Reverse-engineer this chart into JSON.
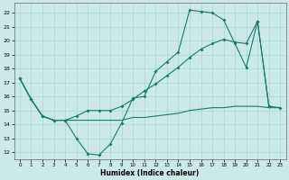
{
  "xlabel": "Humidex (Indice chaleur)",
  "xlim": [
    -0.5,
    23.5
  ],
  "ylim": [
    11.5,
    22.7
  ],
  "xticks": [
    0,
    1,
    2,
    3,
    4,
    5,
    6,
    7,
    8,
    9,
    10,
    11,
    12,
    13,
    14,
    15,
    16,
    17,
    18,
    19,
    20,
    21,
    22,
    23
  ],
  "yticks": [
    12,
    13,
    14,
    15,
    16,
    17,
    18,
    19,
    20,
    21,
    22
  ],
  "background_color": "#cce9e9",
  "grid_color": "#aad4d4",
  "line_color": "#1a7a6e",
  "line1_x": [
    0,
    1,
    2,
    3,
    4,
    5,
    6,
    7,
    8,
    9,
    10,
    11,
    12,
    13,
    14,
    15,
    16,
    17,
    18,
    19,
    20,
    21,
    22
  ],
  "line1_y": [
    17.3,
    15.8,
    14.6,
    14.3,
    14.3,
    13.0,
    11.9,
    11.8,
    12.6,
    14.1,
    15.9,
    16.0,
    17.8,
    18.5,
    19.2,
    22.2,
    22.1,
    22.0,
    21.5,
    19.8,
    18.1,
    21.4,
    15.3
  ],
  "line2_x": [
    0,
    1,
    2,
    3,
    4,
    5,
    6,
    7,
    8,
    9,
    10,
    11,
    12,
    13,
    14,
    15,
    16,
    17,
    18,
    19,
    20,
    21,
    22,
    23
  ],
  "line2_y": [
    17.3,
    15.8,
    14.6,
    14.3,
    14.3,
    14.3,
    14.3,
    14.3,
    14.3,
    14.3,
    14.5,
    14.5,
    14.6,
    14.7,
    14.8,
    15.0,
    15.1,
    15.2,
    15.2,
    15.3,
    15.3,
    15.3,
    15.2,
    15.2
  ],
  "line3_x": [
    0,
    1,
    2,
    3,
    4,
    5,
    6,
    7,
    8,
    9,
    10,
    11,
    12,
    13,
    14,
    15,
    16,
    17,
    18,
    19,
    20,
    21,
    22,
    23
  ],
  "line3_y": [
    17.3,
    15.8,
    14.6,
    14.3,
    14.3,
    14.6,
    15.0,
    15.0,
    15.0,
    15.3,
    15.8,
    16.4,
    16.9,
    17.5,
    18.1,
    18.8,
    19.4,
    19.8,
    20.1,
    19.9,
    19.8,
    21.4,
    15.3,
    15.2
  ]
}
